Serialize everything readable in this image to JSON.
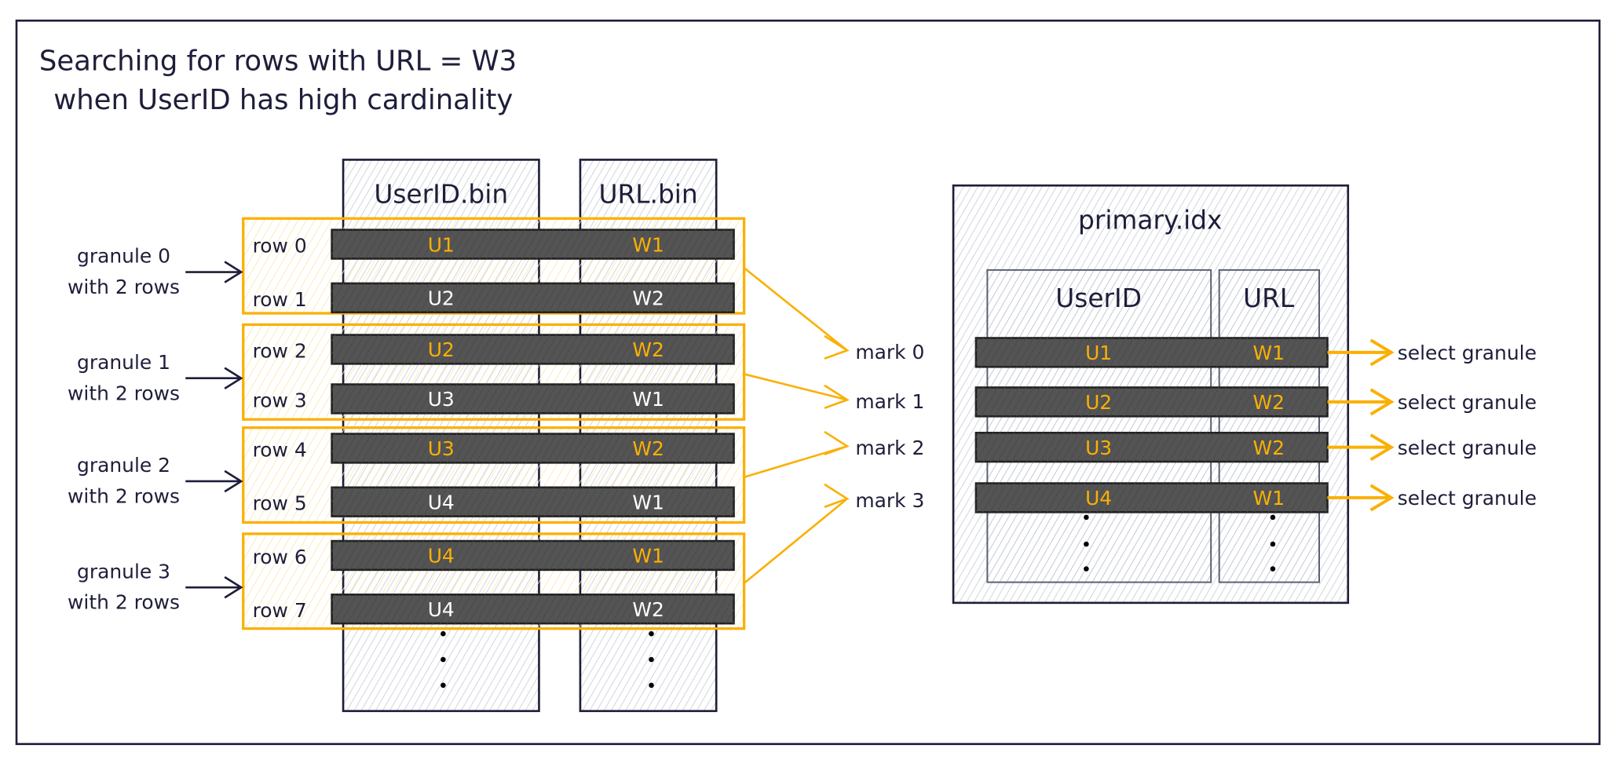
{
  "title": {
    "line1": "Searching for rows with URL = W3",
    "line2": "when UserID has high cardinality"
  },
  "colors": {
    "ink": "#1e1e3a",
    "highlight": "#fab005",
    "row_fill": "#545454",
    "hatch": "#c5cad6"
  },
  "columns": [
    {
      "header": "UserID.bin"
    },
    {
      "header": "URL.bin"
    }
  ],
  "rows": [
    {
      "label": "row 0",
      "userid": "U1",
      "url": "W1",
      "highlight": true
    },
    {
      "label": "row 1",
      "userid": "U2",
      "url": "W2",
      "highlight": false
    },
    {
      "label": "row 2",
      "userid": "U2",
      "url": "W2",
      "highlight": true
    },
    {
      "label": "row 3",
      "userid": "U3",
      "url": "W1",
      "highlight": false
    },
    {
      "label": "row 4",
      "userid": "U3",
      "url": "W2",
      "highlight": true
    },
    {
      "label": "row 5",
      "userid": "U4",
      "url": "W1",
      "highlight": false
    },
    {
      "label": "row 6",
      "userid": "U4",
      "url": "W1",
      "highlight": true
    },
    {
      "label": "row 7",
      "userid": "U4",
      "url": "W2",
      "highlight": false
    }
  ],
  "granules": [
    {
      "line1": "granule 0",
      "line2": "with 2 rows"
    },
    {
      "line1": "granule 1",
      "line2": "with 2 rows"
    },
    {
      "line1": "granule 2",
      "line2": "with 2 rows"
    },
    {
      "line1": "granule 3",
      "line2": "with 2 rows"
    }
  ],
  "marks": [
    "mark 0",
    "mark 1",
    "mark 2",
    "mark 3"
  ],
  "primary_index": {
    "title": "primary.idx",
    "columns": [
      "UserID",
      "URL"
    ],
    "entries": [
      {
        "userid": "U1",
        "url": "W1",
        "action": "select granule"
      },
      {
        "userid": "U2",
        "url": "W2",
        "action": "select granule"
      },
      {
        "userid": "U3",
        "url": "W2",
        "action": "select granule"
      },
      {
        "userid": "U4",
        "url": "W1",
        "action": "select granule"
      }
    ]
  },
  "ellipsis": "⋮"
}
